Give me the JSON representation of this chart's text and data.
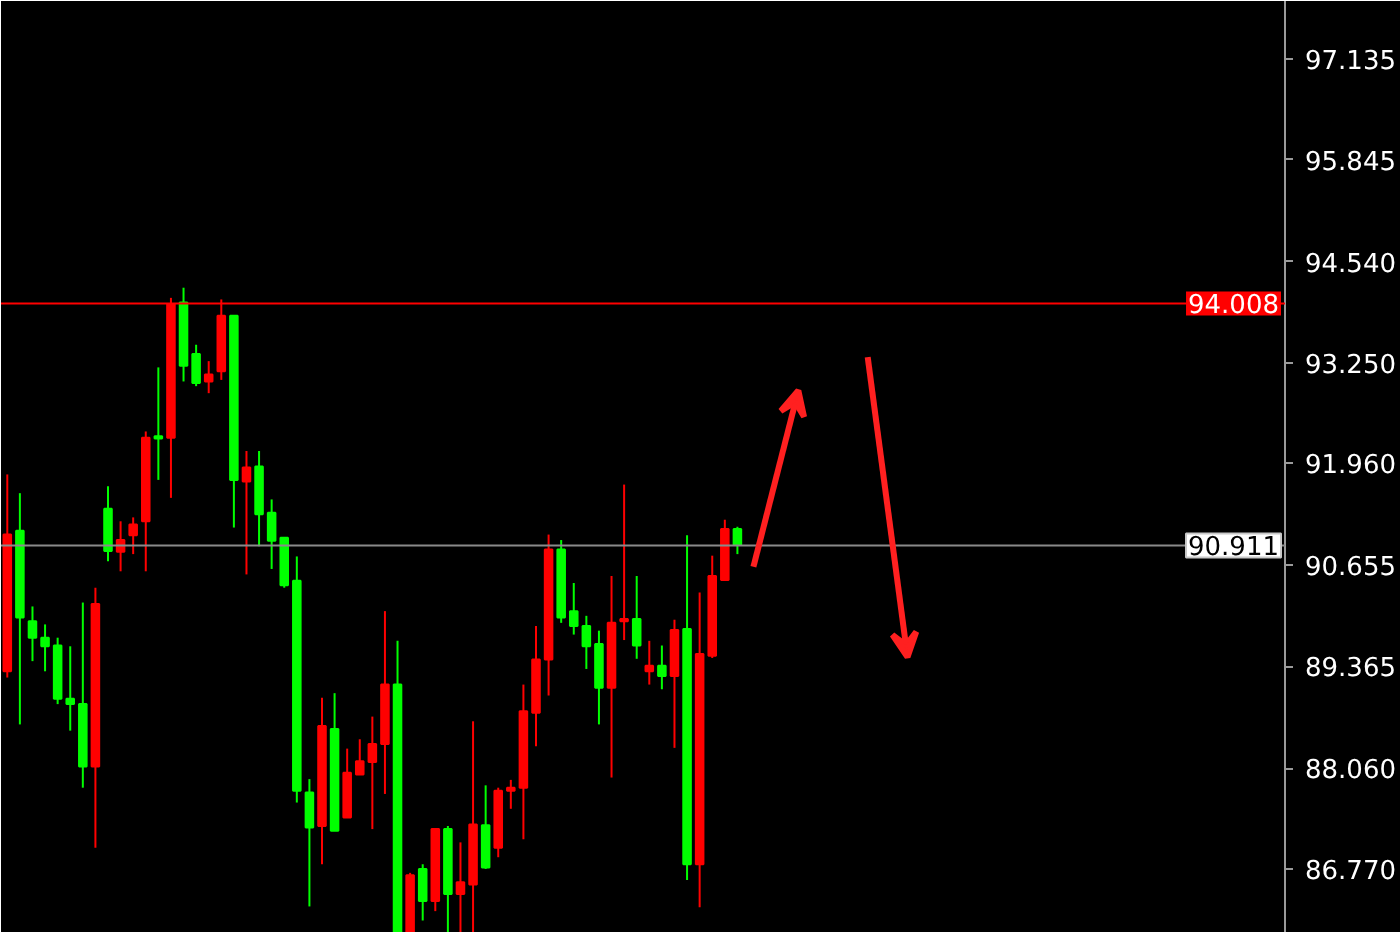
{
  "chart_data": {
    "type": "candlestick",
    "categories": [
      null,
      null,
      null,
      null,
      null,
      null,
      null,
      null,
      null,
      null,
      null,
      null,
      null,
      null,
      null,
      null,
      null,
      null,
      null,
      null,
      null,
      null,
      null,
      null,
      null,
      null,
      null,
      null,
      null,
      null,
      null,
      null,
      null,
      null,
      null,
      null,
      null,
      null,
      null,
      null,
      null,
      null,
      null,
      null,
      null,
      null,
      null,
      null,
      null,
      null,
      null,
      null,
      null,
      null,
      null,
      null,
      null,
      null,
      null,
      null,
      null,
      null,
      null,
      null,
      null,
      null,
      null,
      null,
      null,
      null,
      null,
      null,
      null,
      null,
      null,
      null,
      null,
      null,
      null,
      null,
      null,
      null,
      null,
      null,
      null,
      null,
      null,
      null,
      null,
      null,
      null,
      null,
      null,
      null,
      null,
      null,
      null,
      null,
      null,
      null,
      null,
      null
    ],
    "ohlc": [
      [
        89.3,
        91.82,
        89.22,
        91.05
      ],
      [
        91.1,
        91.58,
        88.62,
        89.99
      ],
      [
        89.94,
        90.13,
        89.43,
        89.73
      ],
      [
        89.73,
        89.9,
        89.3,
        89.62
      ],
      [
        89.63,
        89.73,
        88.88,
        88.95
      ],
      [
        88.95,
        89.62,
        88.54,
        88.88
      ],
      [
        88.88,
        90.18,
        87.81,
        88.08
      ],
      [
        88.08,
        90.37,
        87.04,
        90.16
      ],
      [
        91.38,
        91.67,
        90.71,
        90.84
      ],
      [
        90.83,
        91.22,
        90.58,
        90.98
      ],
      [
        91.04,
        91.27,
        90.8,
        91.18
      ],
      [
        91.22,
        92.37,
        90.58,
        92.29
      ],
      [
        92.31,
        93.19,
        91.75,
        92.28
      ],
      [
        92.29,
        94.08,
        91.52,
        94.0
      ],
      [
        94.02,
        94.21,
        93.01,
        93.21
      ],
      [
        93.36,
        93.48,
        92.95,
        92.99
      ],
      [
        93.01,
        93.27,
        92.86,
        93.1
      ],
      [
        93.14,
        94.06,
        93.03,
        93.85
      ],
      [
        93.85,
        93.85,
        91.14,
        91.75
      ],
      [
        91.73,
        92.12,
        90.54,
        91.91
      ],
      [
        91.92,
        92.12,
        90.9,
        91.31
      ],
      [
        91.33,
        91.5,
        90.61,
        90.97
      ],
      [
        91.01,
        91.01,
        90.37,
        90.4
      ],
      [
        90.46,
        90.77,
        87.62,
        87.77
      ],
      [
        87.75,
        87.92,
        86.29,
        87.3
      ],
      [
        87.32,
        88.96,
        86.83,
        88.6
      ],
      [
        88.56,
        89.02,
        87.26,
        87.26
      ],
      [
        87.43,
        88.31,
        87.43,
        88.0
      ],
      [
        87.98,
        88.43,
        87.98,
        88.15
      ],
      [
        88.14,
        88.72,
        87.28,
        88.37
      ],
      [
        88.37,
        90.07,
        87.73,
        89.13
      ],
      [
        89.13,
        89.69,
        85.96,
        85.96
      ],
      [
        85.96,
        86.72,
        85.96,
        86.69
      ],
      [
        86.77,
        86.83,
        86.11,
        86.36
      ],
      [
        86.36,
        87.28,
        86.23,
        87.28
      ],
      [
        87.28,
        87.32,
        85.96,
        86.45
      ],
      [
        86.45,
        87.11,
        85.96,
        86.6
      ],
      [
        86.57,
        88.66,
        85.96,
        87.34
      ],
      [
        87.33,
        87.84,
        86.77,
        86.79
      ],
      [
        87.04,
        87.81,
        86.92,
        87.77
      ],
      [
        87.77,
        87.91,
        87.54,
        87.81
      ],
      [
        87.81,
        89.13,
        87.15,
        88.79
      ],
      [
        88.77,
        89.88,
        88.34,
        89.45
      ],
      [
        89.45,
        91.05,
        88.99,
        90.86
      ],
      [
        90.86,
        90.98,
        89.92,
        89.99
      ],
      [
        90.07,
        90.43,
        89.77,
        89.88
      ],
      [
        89.88,
        90.01,
        89.33,
        89.62
      ],
      [
        89.65,
        89.82,
        88.62,
        89.09
      ],
      [
        89.09,
        90.52,
        87.94,
        89.92
      ],
      [
        89.94,
        91.69,
        89.7,
        89.97
      ],
      [
        89.97,
        90.52,
        89.46,
        89.63
      ],
      [
        89.3,
        89.69,
        89.13,
        89.37
      ],
      [
        89.37,
        89.63,
        89.07,
        89.24
      ],
      [
        89.24,
        89.96,
        88.32,
        89.83
      ],
      [
        89.84,
        91.04,
        86.63,
        86.83
      ],
      [
        86.83,
        90.31,
        86.28,
        89.52
      ],
      [
        89.5,
        90.78,
        89.47,
        90.52
      ],
      [
        90.47,
        91.24,
        90.46,
        91.12
      ],
      [
        91.12,
        91.15,
        90.8,
        90.92
      ],
      null,
      null,
      null,
      null,
      null,
      null,
      null,
      null,
      null,
      null,
      null,
      null,
      null,
      null,
      null,
      null,
      null,
      null,
      null,
      null,
      null,
      null,
      null,
      null,
      null,
      null,
      null,
      null,
      null,
      null,
      null,
      null,
      null,
      null,
      null,
      null,
      null,
      null,
      null,
      null,
      null,
      null,
      null
    ],
    "colors": [
      "#ff0000",
      "#00ff00",
      "#00ff00",
      "#00ff00",
      "#00ff00",
      "#00ff00",
      "#00ff00",
      "#ff0000",
      "#00ff00",
      "#ff0000",
      "#ff0000",
      "#ff0000",
      "#00ff00",
      "#ff0000",
      "#00ff00",
      "#00ff00",
      "#ff0000",
      "#ff0000",
      "#00ff00",
      "#ff0000",
      "#00ff00",
      "#00ff00",
      "#00ff00",
      "#00ff00",
      "#00ff00",
      "#ff0000",
      "#00ff00",
      "#ff0000",
      "#ff0000",
      "#ff0000",
      "#ff0000",
      "#00ff00",
      "#ff0000",
      "#00ff00",
      "#ff0000",
      "#00ff00",
      "#ff0000",
      "#ff0000",
      "#00ff00",
      "#ff0000",
      "#ff0000",
      "#ff0000",
      "#ff0000",
      "#ff0000",
      "#00ff00",
      "#00ff00",
      "#00ff00",
      "#00ff00",
      "#ff0000",
      "#ff0000",
      "#00ff00",
      "#ff0000",
      "#00ff00",
      "#ff0000",
      "#00ff00",
      "#ff0000",
      "#ff0000",
      "#ff0000",
      "#00ff00",
      null,
      null,
      null,
      null,
      null,
      null,
      null,
      null,
      null,
      null,
      null,
      null,
      null,
      null,
      null,
      null,
      null,
      null,
      null,
      null,
      null,
      null,
      null,
      null,
      null,
      null,
      null,
      null,
      null,
      null,
      null,
      null,
      null,
      null,
      null,
      null,
      null,
      null,
      null,
      null,
      null,
      null,
      null
    ],
    "ylim": [
      85.95,
      97.88
    ],
    "yticks": [
      97.135,
      95.845,
      {
        "value": 94.54,
        "label": "94.540"
      },
      {
        "value": 93.25,
        "label": "93.250"
      },
      {
        "value": 91.96,
        "label": "91.960"
      },
      90.655,
      89.365,
      {
        "value": 88.06,
        "label": "88.060"
      },
      {
        "value": 86.77,
        "label": "86.770"
      }
    ],
    "ref_lines": [
      {
        "axis": "y",
        "value": 94.008,
        "label": "94.008",
        "color": "#ff0000"
      },
      {
        "axis": "y",
        "value": 90.911,
        "label": "90.911",
        "color": "#8a8a8a"
      }
    ],
    "tick_labels": "y",
    "grid": false
  }
}
